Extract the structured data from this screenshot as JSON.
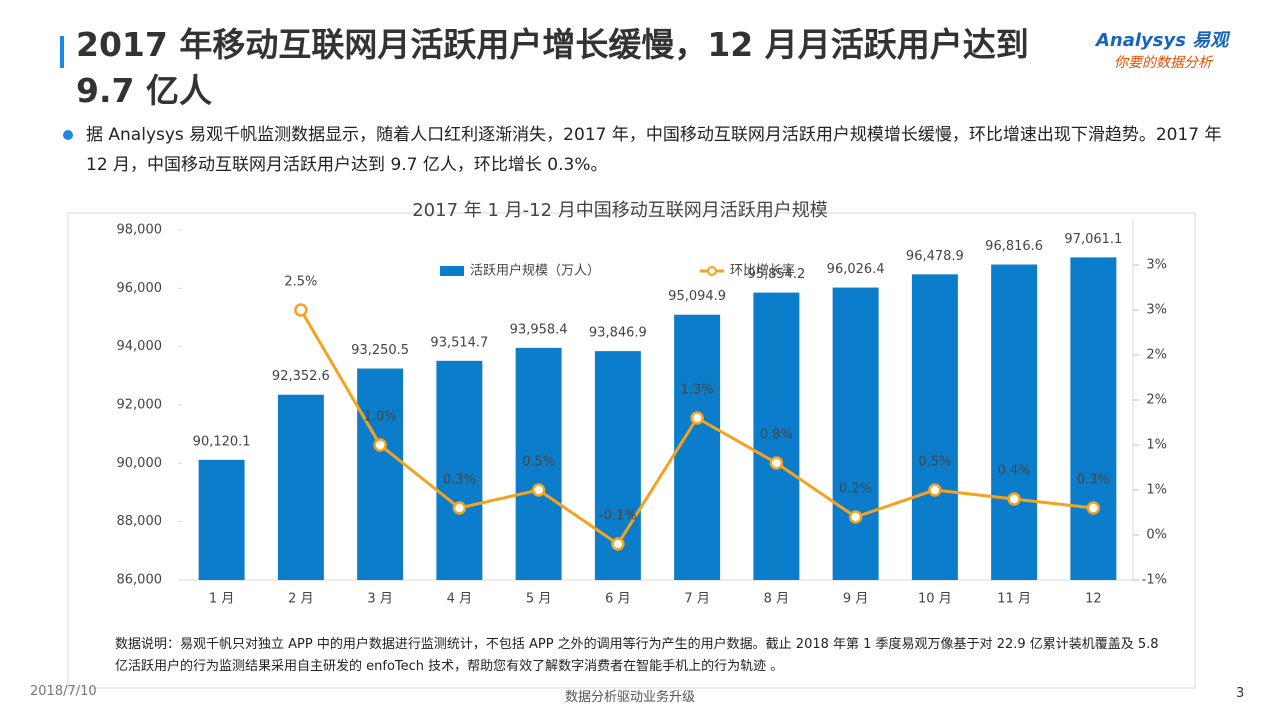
{
  "slide": {
    "title": "2017 年移动互联网月活跃用户增长缓慢，12 月月活跃用户达到 9.7 亿人",
    "logo": "Analysys 易观",
    "logo_slogan": "你要的数据分析",
    "bullet": "据 Analysys 易观千帆监测数据显示，随着人口红利逐渐消失，2017 年，中国移动互联网月活跃用户规模增长缓慢，环比增速出现下滑趋势。2017 年 12 月，中国移动互联网月活跃用户达到 9.7 亿人，环比增长 0.3%。",
    "note": "数据说明：易观千帆只对独立 APP 中的用户数据进行监测统计，不包括 APP 之外的调用等行为产生的用户数据。截止 2018 年第 1 季度易观万像基于对 22.9 亿累计装机覆盖及 5.8 亿活跃用户的行为监测结果采用自主研发的 enfoTech 技术，帮助您有效了解数字消费者在智能手机上的行为轨迹 。",
    "date": "2018/7/10",
    "footer": "数据分析驱动业务升级",
    "page": "3"
  },
  "chart_data": {
    "type": "bar-line",
    "title": "2017 年 1 月-12 月中国移动互联网月活跃用户规模",
    "categories": [
      "1 月",
      "2 月",
      "3 月",
      "4 月",
      "5 月",
      "6 月",
      "7 月",
      "8 月",
      "9 月",
      "10 月",
      "11 月",
      "12"
    ],
    "series": [
      {
        "name": "活跃用户规模（万人）",
        "type": "bar",
        "color": "#0b7dcb",
        "values": [
          90120.1,
          92352.6,
          93250.5,
          93514.7,
          93958.4,
          93846.9,
          95094.9,
          95854.2,
          96026.4,
          96478.9,
          96816.6,
          97061.1
        ],
        "value_labels": [
          "90,120.1",
          "92,352.6",
          "93,250.5",
          "93,514.7",
          "93,958.4",
          "93,846.9",
          "95,094.9",
          "95,854.2",
          "96,026.4",
          "96,478.9",
          "96,816.6",
          "97,061.1"
        ]
      },
      {
        "name": "环比增长率",
        "type": "line",
        "axis": "y2",
        "color": "#f5a21e",
        "values": [
          null,
          2.5,
          1.0,
          0.3,
          0.5,
          -0.1,
          1.3,
          0.8,
          0.2,
          0.5,
          0.4,
          0.3
        ],
        "value_labels": [
          null,
          "2.5%",
          "1.0%",
          "0.3%",
          "0.5%",
          "-0.1%",
          "1.3%",
          "0.8%",
          "0.2%",
          "0.5%",
          "0.4%",
          "0.3%"
        ]
      }
    ],
    "ylim": [
      86000,
      98000
    ],
    "yticks": [
      {
        "value": 86000,
        "label": "86,000"
      },
      {
        "value": 88000,
        "label": "88,000"
      },
      {
        "value": 90000,
        "label": "90,000"
      },
      {
        "value": 92000,
        "label": "92,000"
      },
      {
        "value": 94000,
        "label": "94,000"
      },
      {
        "value": 96000,
        "label": "96,000"
      },
      {
        "value": 98000,
        "label": "98,000"
      }
    ],
    "y2lim": [
      -0.5,
      3.5
    ],
    "y2ticks": [
      {
        "value": -0.5,
        "label": "-1%"
      },
      {
        "value": 0,
        "label": "0%"
      },
      {
        "value": 0.5,
        "label": "1%"
      },
      {
        "value": 1.0,
        "label": "1%"
      },
      {
        "value": 1.5,
        "label": "2%"
      },
      {
        "value": 2.0,
        "label": "2%"
      },
      {
        "value": 2.5,
        "label": "3%"
      },
      {
        "value": 3.0,
        "label": "3%"
      }
    ],
    "grid": false
  }
}
